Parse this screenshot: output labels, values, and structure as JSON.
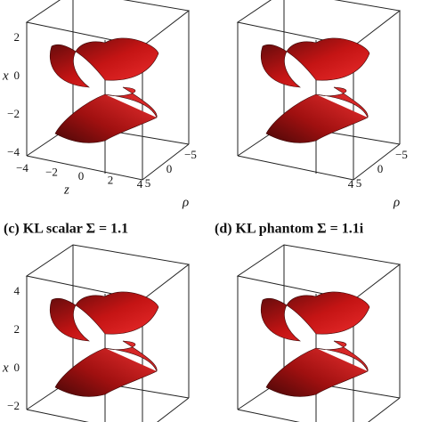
{
  "panels": [
    {
      "y_label": "x",
      "y_ticks": [
        "2",
        "0",
        "−2",
        "−4"
      ],
      "z_label": "z",
      "z_ticks": [
        "−4",
        "−2",
        "0",
        "2",
        "4"
      ],
      "rho_label": "ρ",
      "rho_ticks": [
        "5",
        "0",
        "−5"
      ]
    },
    {
      "z_ticks": [
        "4"
      ],
      "rho_label": "ρ",
      "rho_ticks": [
        "5",
        "0",
        "−5"
      ]
    },
    {
      "caption": "(c) KL scalar Σ = 1.1",
      "y_label": "x",
      "y_ticks": [
        "4",
        "2",
        "0",
        "−2"
      ]
    },
    {
      "caption": "(d) KL phantom Σ = 1.1i"
    }
  ]
}
